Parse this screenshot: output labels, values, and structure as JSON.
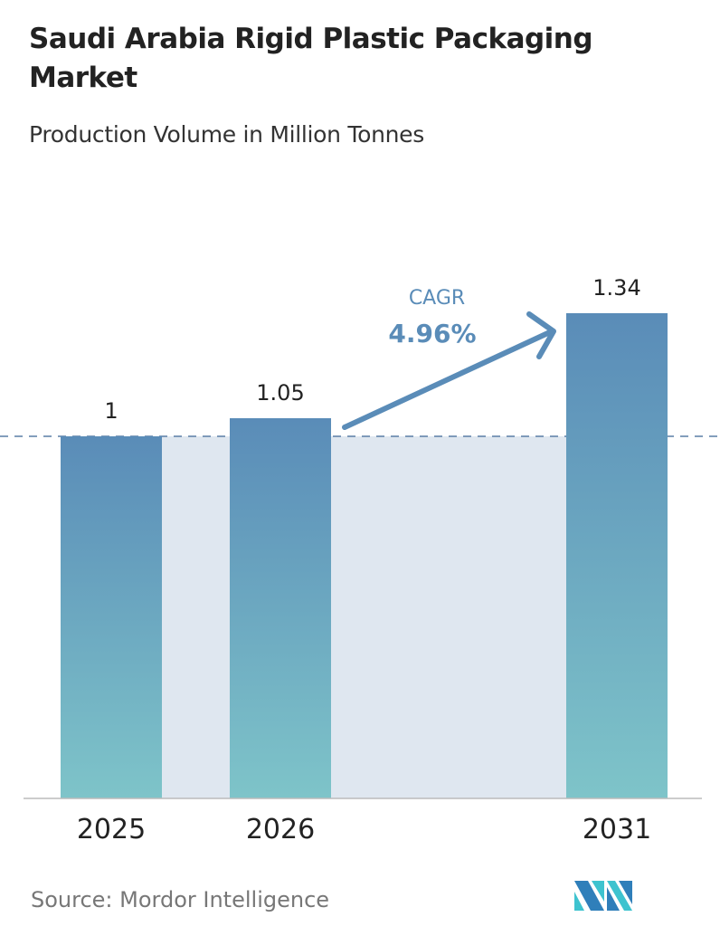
{
  "chart_data": {
    "type": "bar",
    "title": "Saudi Arabia Rigid Plastic Packaging Market",
    "subtitle": "Production Volume in Million Tonnes",
    "categories": [
      "2025",
      "2026",
      "2031"
    ],
    "values": [
      1,
      1.05,
      1.34
    ],
    "data_labels": [
      "1",
      "1.05",
      "1.34"
    ],
    "ylim": [
      0,
      1.34
    ],
    "grid": false,
    "reference_line": 1,
    "annotation": {
      "label": "CAGR",
      "value": "4.96%"
    },
    "colors": {
      "bar_top": "#5a8cb8",
      "bar_bottom": "#7ec4c9",
      "shade": "#dfe7f0",
      "annotation": "#5a8cb8"
    }
  },
  "source": "Source:  Mordor Intelligence",
  "logo": "Mordor Intelligence logo"
}
